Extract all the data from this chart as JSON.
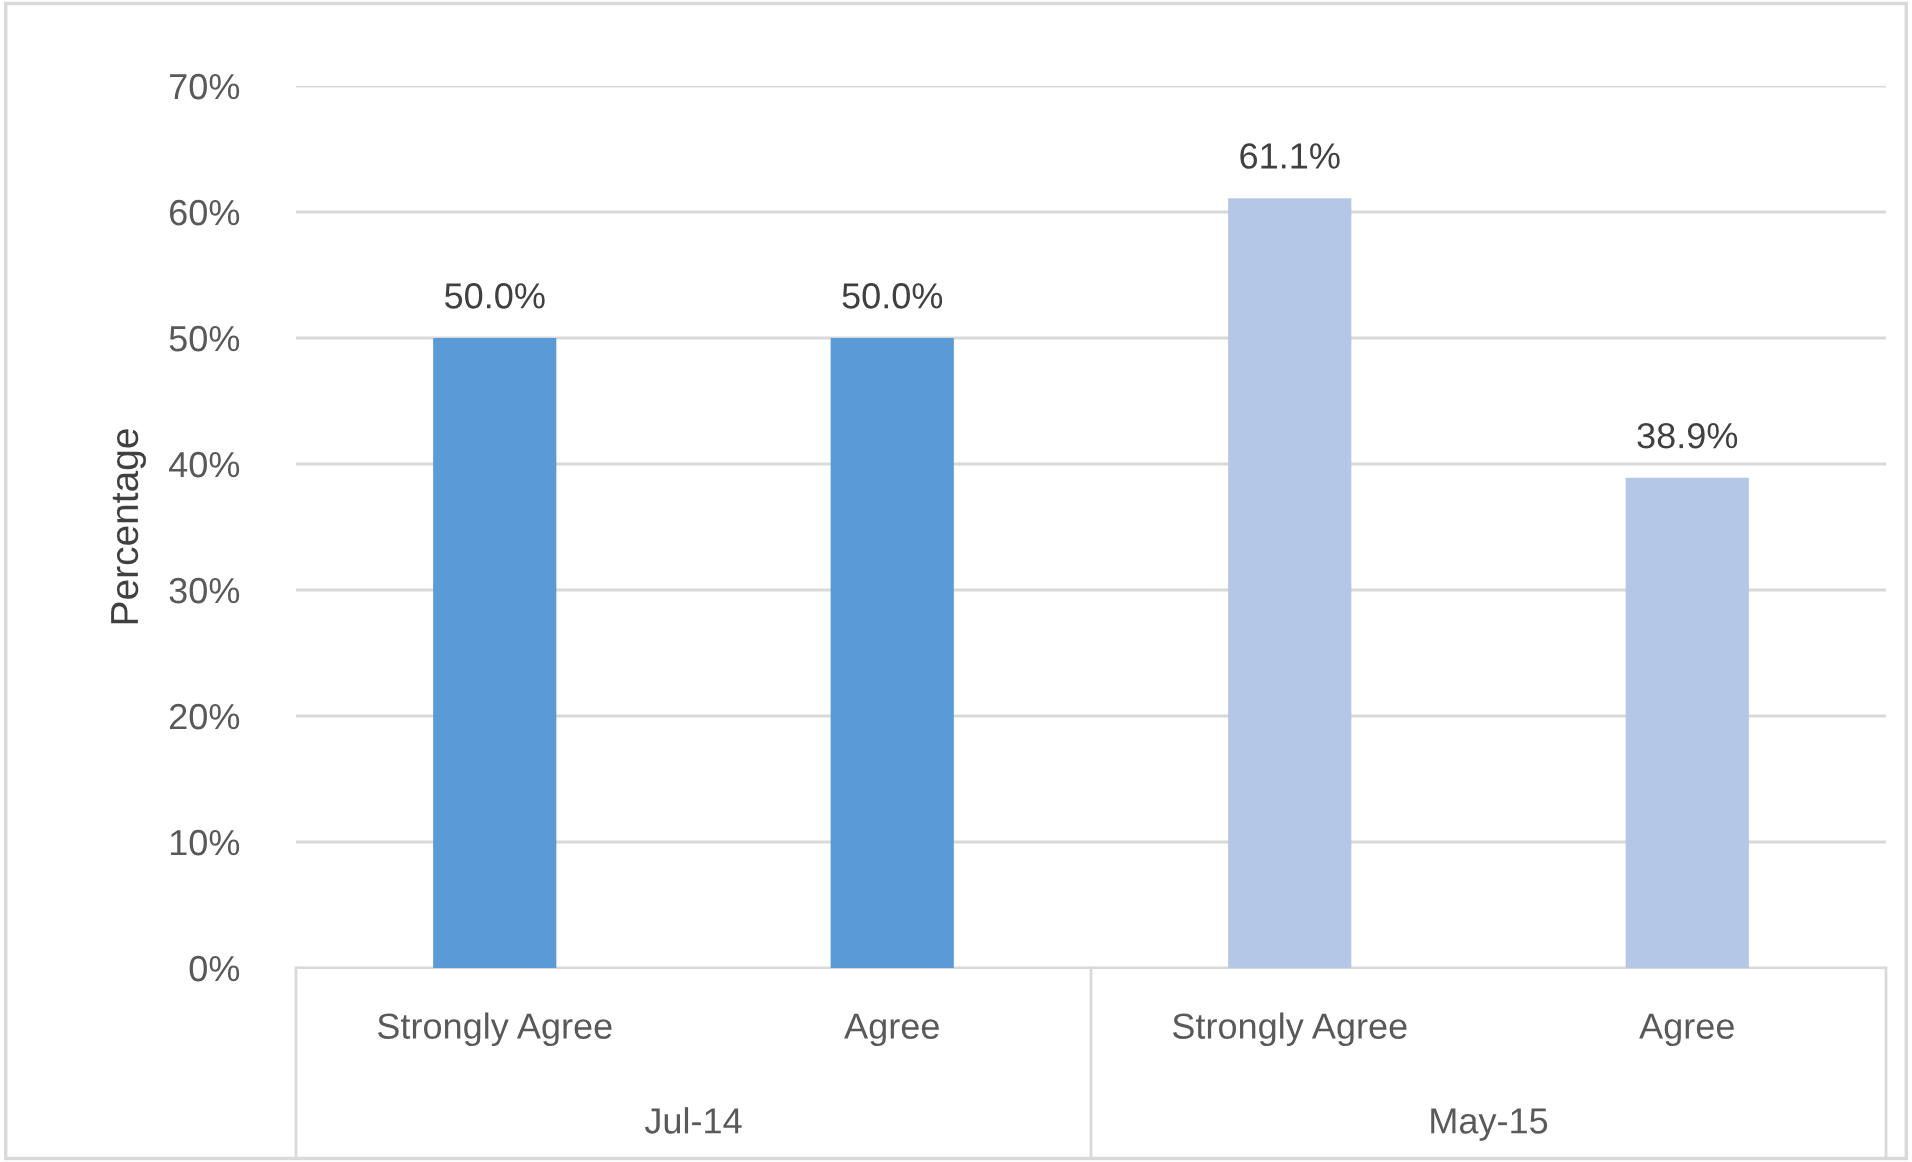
{
  "chart_data": {
    "type": "bar",
    "ylabel": "Percentage",
    "categories": [
      "Strongly Agree",
      "Agree",
      "Strongly Agree",
      "Agree"
    ],
    "values": [
      50.0,
      50.0,
      61.1,
      38.9
    ],
    "colors": [
      "#5b9bd5",
      "#5b9bd5",
      "#b4c7e7",
      "#b4c7e7"
    ],
    "value_labels": [
      "50.0%",
      "50.0%",
      "61.1%",
      "38.9%"
    ],
    "annotations": [
      "Jul-14",
      "May-15"
    ],
    "ylim": [
      0,
      70
    ],
    "yticks": [
      {
        "value": 0,
        "label": "0%"
      },
      {
        "value": 10,
        "label": "10%"
      },
      {
        "value": 20,
        "label": "20%"
      },
      {
        "value": 30,
        "label": "30%"
      },
      {
        "value": 40,
        "label": "40%"
      },
      {
        "value": 50,
        "label": "50%"
      },
      {
        "value": 60,
        "label": "60%"
      },
      {
        "value": 70,
        "label": "70%"
      }
    ],
    "grid": "y"
  }
}
